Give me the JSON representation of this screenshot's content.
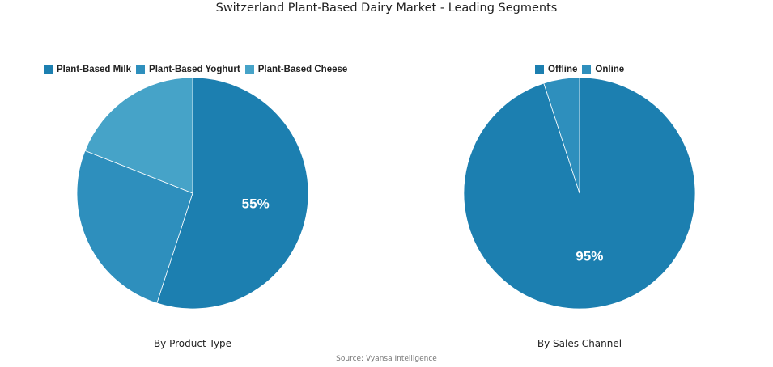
{
  "title": "Switzerland Plant-Based Dairy Market - Leading Segments",
  "source": "Source: Vyansa Intelligence",
  "chart_data": [
    {
      "type": "pie",
      "subtitle": "By Product Type",
      "legend_position": "top",
      "slices": [
        {
          "name": "Plant-Based Milk",
          "value": 55,
          "color": "#1c7fb0",
          "label": "55%"
        },
        {
          "name": "Plant-Based Yoghurt",
          "value": 26,
          "color": "#2e8fbd",
          "label": ""
        },
        {
          "name": "Plant-Based Cheese",
          "value": 19,
          "color": "#46a3c8",
          "label": ""
        }
      ]
    },
    {
      "type": "pie",
      "subtitle": "By Sales Channel",
      "legend_position": "top",
      "slices": [
        {
          "name": "Offline",
          "value": 95,
          "color": "#1c7fb0",
          "label": "95%"
        },
        {
          "name": "Online",
          "value": 5,
          "color": "#2e8fbd",
          "label": ""
        }
      ]
    }
  ]
}
